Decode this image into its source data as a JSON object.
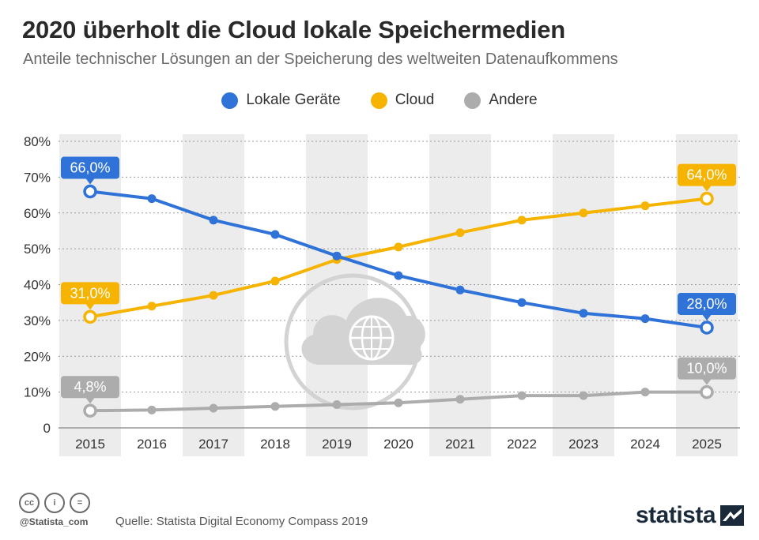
{
  "title": "2020 überholt die Cloud lokale Speichermedien",
  "subtitle": "Anteile technischer Lösungen an der Speicherung des weltweiten Datenaufkommens",
  "colors": {
    "local": "#2f72d8",
    "cloud": "#f6b400",
    "other": "#acacac",
    "band": "#ececec",
    "grid": "#9a9a9a",
    "illustration": "#d3d3d3"
  },
  "chart_data": {
    "type": "line",
    "categories": [
      "2015",
      "2016",
      "2017",
      "2018",
      "2019",
      "2020",
      "2021",
      "2022",
      "2023",
      "2024",
      "2025"
    ],
    "ylim": [
      0,
      80
    ],
    "yticks": [
      "0",
      "10%",
      "20%",
      "30%",
      "40%",
      "50%",
      "60%",
      "70%",
      "80%"
    ],
    "series": [
      {
        "name": "Lokale Geräte",
        "color": "#2f72d8",
        "values": [
          66,
          64,
          58,
          54,
          48,
          42.5,
          38.5,
          35,
          32,
          30.5,
          28
        ],
        "labels": {
          "first": "66,0%",
          "last": "28,0%"
        }
      },
      {
        "name": "Cloud",
        "color": "#f6b400",
        "values": [
          31,
          34,
          37,
          41,
          47,
          50.5,
          54.5,
          58,
          60,
          62,
          64
        ],
        "labels": {
          "first": "31,0%",
          "last": "64,0%"
        }
      },
      {
        "name": "Andere",
        "color": "#acacac",
        "values": [
          4.8,
          5,
          5.5,
          6,
          6.5,
          7,
          8,
          9,
          9,
          10,
          10
        ],
        "labels": {
          "first": "4,8%",
          "last": "10,0%"
        }
      }
    ],
    "legend_position": "top-center",
    "grid": true
  },
  "footer": {
    "handle": "@Statista_com",
    "source": "Quelle: Statista Digital Economy Compass 2019",
    "logo": "statista",
    "license_icons": [
      "cc",
      "i",
      "="
    ]
  }
}
